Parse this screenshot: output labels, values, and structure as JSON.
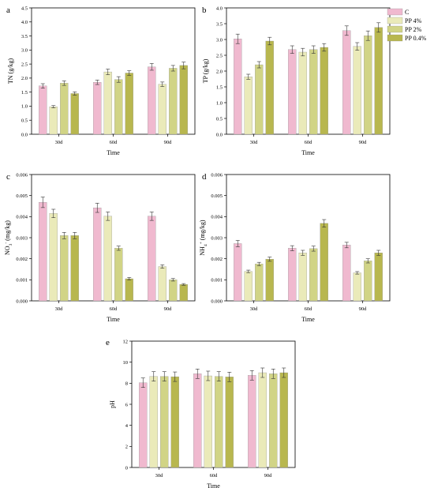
{
  "legend": {
    "entries": [
      "C",
      "PP 4%",
      "PP 2%",
      "PP 0.4%"
    ],
    "colors": [
      "#f0b9cf",
      "#eaeab9",
      "#d1d486",
      "#b8b74f"
    ]
  },
  "chart_data": [
    {
      "type": "bar",
      "panel_label": "a",
      "categories": [
        "30d",
        "60d",
        "90d"
      ],
      "xlabel": "Time",
      "ylabel": "TN (g/kg)",
      "ylim": [
        0,
        4.5
      ],
      "yticks": [
        0.0,
        0.5,
        1.0,
        1.5,
        2.0,
        2.5,
        3.0,
        3.5,
        4.0,
        4.5
      ],
      "ytick_labels": [
        "0.0",
        "0.5",
        "1.0",
        "1.5",
        "2.0",
        "2.5",
        "3.0",
        "3.5",
        "4.0",
        "4.5"
      ],
      "series": [
        {
          "name": "C",
          "values": [
            1.72,
            1.85,
            2.4
          ],
          "errors": [
            0.08,
            0.08,
            0.12
          ]
        },
        {
          "name": "PP 4%",
          "values": [
            0.98,
            2.22,
            1.78
          ],
          "errors": [
            0.04,
            0.1,
            0.08
          ]
        },
        {
          "name": "PP 2%",
          "values": [
            1.82,
            1.95,
            2.35
          ],
          "errors": [
            0.08,
            0.1,
            0.1
          ]
        },
        {
          "name": "PP 0.4%",
          "values": [
            1.45,
            2.18,
            2.45
          ],
          "errors": [
            0.06,
            0.08,
            0.12
          ]
        }
      ]
    },
    {
      "type": "bar",
      "panel_label": "b",
      "categories": [
        "30d",
        "60d",
        "90d"
      ],
      "xlabel": "Time",
      "ylabel": "TP (g/kg)",
      "ylim": [
        0,
        4.0
      ],
      "yticks": [
        0.0,
        0.5,
        1.0,
        1.5,
        2.0,
        2.5,
        3.0,
        3.5,
        4.0
      ],
      "ytick_labels": [
        "0.0",
        "0.5",
        "1.0",
        "1.5",
        "2.0",
        "2.5",
        "3.0",
        "3.5",
        "4.0"
      ],
      "series": [
        {
          "name": "C",
          "values": [
            3.02,
            2.68,
            3.28
          ],
          "errors": [
            0.15,
            0.12,
            0.15
          ]
        },
        {
          "name": "PP 4%",
          "values": [
            1.82,
            2.6,
            2.78
          ],
          "errors": [
            0.08,
            0.12,
            0.12
          ]
        },
        {
          "name": "PP 2%",
          "values": [
            2.2,
            2.68,
            3.12
          ],
          "errors": [
            0.1,
            0.12,
            0.15
          ]
        },
        {
          "name": "PP 0.4%",
          "values": [
            2.95,
            2.75,
            3.38
          ],
          "errors": [
            0.12,
            0.12,
            0.15
          ]
        }
      ]
    },
    {
      "type": "bar",
      "panel_label": "c",
      "categories": [
        "30d",
        "60d",
        "90d"
      ],
      "xlabel": "Time",
      "ylabel": "NO3- (mg/kg)",
      "ylabel_main": "NO",
      "ylabel_sub": "3",
      "ylabel_sup": "-",
      "ylabel_rest": " (mg/kg)",
      "ylim": [
        0,
        0.006
      ],
      "yticks": [
        0.0,
        0.001,
        0.002,
        0.003,
        0.004,
        0.005,
        0.006
      ],
      "ytick_labels": [
        "0.000",
        "0.001",
        "0.002",
        "0.003",
        "0.004",
        "0.005",
        "0.006"
      ],
      "series": [
        {
          "name": "C",
          "values": [
            0.00468,
            0.00442,
            0.00402
          ],
          "errors": [
            0.00025,
            0.00022,
            0.0002
          ]
        },
        {
          "name": "PP 4%",
          "values": [
            0.00415,
            0.00402,
            0.00163
          ],
          "errors": [
            0.0002,
            0.0002,
            8e-05
          ]
        },
        {
          "name": "PP 2%",
          "values": [
            0.0031,
            0.0025,
            0.001
          ],
          "errors": [
            0.00015,
            0.0001,
            6e-05
          ]
        },
        {
          "name": "PP 0.4%",
          "values": [
            0.0031,
            0.00105,
            0.00078
          ],
          "errors": [
            0.00015,
            6e-05,
            4e-05
          ]
        }
      ]
    },
    {
      "type": "bar",
      "panel_label": "d",
      "categories": [
        "30d",
        "60d",
        "90d"
      ],
      "xlabel": "Time",
      "ylabel": "NH4+ (mg/kg)",
      "ylabel_main": "NH",
      "ylabel_sub": "4",
      "ylabel_sup": "+",
      "ylabel_rest": " (mg/kg)",
      "ylim": [
        0,
        0.006
      ],
      "yticks": [
        0.0,
        0.001,
        0.002,
        0.003,
        0.004,
        0.005,
        0.006
      ],
      "ytick_labels": [
        "0.000",
        "0.001",
        "0.002",
        "0.003",
        "0.004",
        "0.005",
        "0.006"
      ],
      "series": [
        {
          "name": "C",
          "values": [
            0.00272,
            0.0025,
            0.00265
          ],
          "errors": [
            0.00015,
            0.00012,
            0.00013
          ]
        },
        {
          "name": "PP 4%",
          "values": [
            0.0014,
            0.00228,
            0.00133
          ],
          "errors": [
            6e-05,
            0.00012,
            6e-05
          ]
        },
        {
          "name": "PP 2%",
          "values": [
            0.00175,
            0.00248,
            0.0019
          ],
          "errors": [
            8e-05,
            0.00012,
            0.0001
          ]
        },
        {
          "name": "PP 0.4%",
          "values": [
            0.00198,
            0.00368,
            0.00228
          ],
          "errors": [
            0.0001,
            0.00018,
            0.00012
          ]
        }
      ]
    },
    {
      "type": "bar",
      "panel_label": "e",
      "categories": [
        "30d",
        "60d",
        "90d"
      ],
      "xlabel": "Time",
      "ylabel": "pH",
      "ylim": [
        0,
        12
      ],
      "yticks": [
        0,
        2,
        4,
        6,
        8,
        10,
        12
      ],
      "ytick_labels": [
        "0",
        "2",
        "4",
        "6",
        "8",
        "10",
        "12"
      ],
      "series": [
        {
          "name": "C",
          "values": [
            8.05,
            8.9,
            8.75
          ],
          "errors": [
            0.45,
            0.45,
            0.45
          ]
        },
        {
          "name": "PP 4%",
          "values": [
            8.65,
            8.7,
            9.0
          ],
          "errors": [
            0.45,
            0.45,
            0.45
          ]
        },
        {
          "name": "PP 2%",
          "values": [
            8.65,
            8.65,
            8.9
          ],
          "errors": [
            0.45,
            0.45,
            0.45
          ]
        },
        {
          "name": "PP 0.4%",
          "values": [
            8.62,
            8.6,
            9.0
          ],
          "errors": [
            0.45,
            0.45,
            0.45
          ]
        }
      ]
    }
  ]
}
